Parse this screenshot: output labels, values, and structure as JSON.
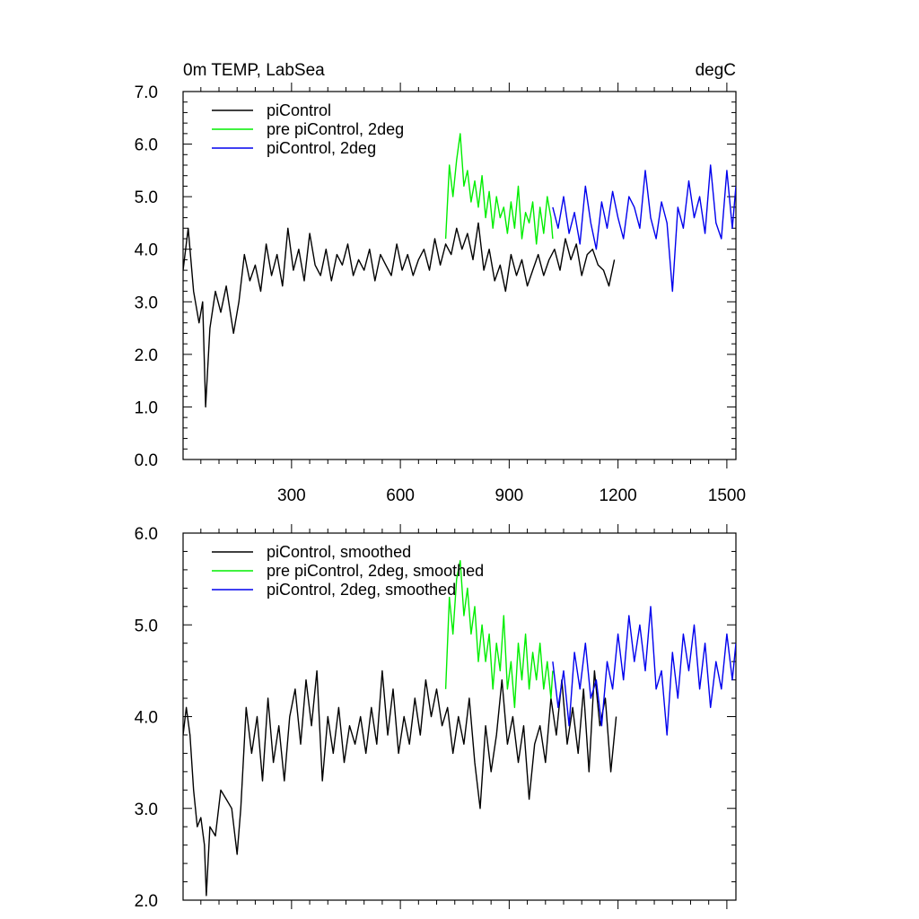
{
  "chart_data": [
    {
      "type": "line",
      "title_left": "0m TEMP, LabSea",
      "title_right": "degC",
      "xlabel": "",
      "ylabel": "",
      "xlim": [
        1,
        1525
      ],
      "ylim": [
        0,
        7
      ],
      "xticks": [
        300,
        600,
        900,
        1200,
        1500
      ],
      "xtick_labels": [
        "300",
        "600",
        "900",
        "1200",
        "1500"
      ],
      "yticks": [
        0,
        1,
        2,
        3,
        4,
        5,
        6,
        7
      ],
      "ytick_labels": [
        "0.0",
        "1.0",
        "2.0",
        "3.0",
        "4.0",
        "5.0",
        "6.0",
        "7.0"
      ],
      "legend_position": "top-left",
      "series": [
        {
          "name": "piControl",
          "color": "#000000",
          "x": [
            1,
            15,
            30,
            45,
            55,
            63,
            75,
            90,
            105,
            120,
            140,
            155,
            170,
            185,
            200,
            215,
            230,
            245,
            260,
            275,
            290,
            305,
            320,
            335,
            350,
            365,
            380,
            395,
            410,
            425,
            440,
            455,
            470,
            485,
            500,
            515,
            530,
            545,
            560,
            575,
            590,
            605,
            620,
            635,
            650,
            665,
            680,
            695,
            710,
            725,
            740,
            755,
            770,
            785,
            800,
            815,
            830,
            845,
            860,
            875,
            890,
            905,
            920,
            935,
            950,
            965,
            980,
            995,
            1010,
            1025,
            1040,
            1055,
            1070,
            1085,
            1100,
            1115,
            1130,
            1145,
            1160,
            1175,
            1190
          ],
          "y": [
            3.6,
            4.4,
            3.2,
            2.6,
            3.0,
            1.0,
            2.5,
            3.2,
            2.8,
            3.3,
            2.4,
            3.0,
            3.9,
            3.4,
            3.7,
            3.2,
            4.1,
            3.5,
            3.9,
            3.3,
            4.4,
            3.6,
            4.0,
            3.4,
            4.3,
            3.7,
            3.5,
            4.0,
            3.4,
            3.9,
            3.7,
            4.1,
            3.5,
            3.8,
            3.6,
            4.0,
            3.4,
            3.9,
            3.7,
            3.5,
            4.1,
            3.6,
            3.9,
            3.5,
            3.8,
            4.0,
            3.6,
            4.2,
            3.7,
            4.1,
            3.9,
            4.4,
            4.0,
            4.3,
            3.8,
            4.5,
            3.6,
            4.0,
            3.4,
            3.7,
            3.2,
            3.9,
            3.5,
            3.8,
            3.3,
            3.6,
            3.9,
            3.5,
            3.8,
            4.0,
            3.6,
            4.2,
            3.8,
            4.1,
            3.5,
            3.9,
            4.0,
            3.7,
            3.6,
            3.3,
            3.8
          ]
        },
        {
          "name": "pre piControl, 2deg",
          "color": "#00ee00",
          "x": [
            725,
            735,
            745,
            755,
            765,
            775,
            785,
            795,
            805,
            815,
            825,
            835,
            845,
            855,
            865,
            875,
            885,
            895,
            905,
            915,
            925,
            935,
            945,
            955,
            965,
            975,
            985,
            995,
            1005,
            1015,
            1020
          ],
          "y": [
            4.2,
            5.6,
            5.0,
            5.7,
            6.2,
            5.2,
            5.5,
            4.9,
            5.3,
            4.8,
            5.4,
            4.6,
            5.1,
            4.4,
            5.0,
            4.6,
            4.8,
            4.3,
            4.9,
            4.4,
            5.2,
            4.2,
            4.7,
            4.5,
            4.9,
            4.1,
            4.8,
            4.3,
            5.0,
            4.6,
            4.2
          ]
        },
        {
          "name": "piControl, 2deg",
          "color": "#0000ee",
          "x": [
            1020,
            1035,
            1050,
            1065,
            1080,
            1095,
            1110,
            1125,
            1140,
            1155,
            1170,
            1185,
            1200,
            1215,
            1230,
            1245,
            1260,
            1275,
            1290,
            1305,
            1320,
            1335,
            1350,
            1365,
            1380,
            1395,
            1410,
            1425,
            1440,
            1455,
            1470,
            1485,
            1500,
            1515,
            1525
          ],
          "y": [
            4.8,
            4.4,
            5.0,
            4.3,
            4.7,
            4.1,
            5.2,
            4.5,
            4.0,
            4.9,
            4.4,
            5.1,
            4.6,
            4.2,
            5.0,
            4.8,
            4.4,
            5.5,
            4.6,
            4.2,
            4.9,
            4.5,
            3.2,
            4.8,
            4.4,
            5.3,
            4.6,
            5.0,
            4.3,
            5.6,
            4.5,
            4.2,
            5.5,
            4.4,
            5.2
          ]
        }
      ]
    },
    {
      "type": "line",
      "title_left": "",
      "title_right": "",
      "xlabel": "",
      "ylabel": "",
      "xlim": [
        1,
        1525
      ],
      "ylim": [
        2,
        6
      ],
      "xticks": [
        300,
        600,
        900,
        1200,
        1500
      ],
      "xtick_labels": [],
      "yticks": [
        2,
        3,
        4,
        5,
        6
      ],
      "ytick_labels": [
        "2.0",
        "3.0",
        "4.0",
        "5.0",
        "6.0"
      ],
      "legend_position": "top-left",
      "series": [
        {
          "name": "piControl, smoothed",
          "color": "#000000",
          "x": [
            1,
            10,
            20,
            30,
            40,
            50,
            60,
            65,
            75,
            90,
            105,
            120,
            135,
            150,
            160,
            175,
            190,
            205,
            220,
            235,
            250,
            265,
            280,
            295,
            310,
            325,
            340,
            355,
            370,
            385,
            400,
            415,
            430,
            445,
            460,
            475,
            490,
            505,
            520,
            535,
            550,
            565,
            580,
            595,
            610,
            625,
            640,
            655,
            670,
            685,
            700,
            715,
            730,
            745,
            760,
            775,
            790,
            805,
            820,
            835,
            850,
            865,
            880,
            895,
            910,
            925,
            940,
            955,
            970,
            985,
            1000,
            1015,
            1030,
            1045,
            1060,
            1075,
            1090,
            1105,
            1120,
            1135,
            1150,
            1165,
            1180,
            1195
          ],
          "y": [
            3.8,
            4.1,
            3.8,
            3.2,
            2.8,
            2.9,
            2.6,
            2.05,
            2.8,
            2.7,
            3.2,
            3.1,
            3.0,
            2.5,
            3.0,
            4.1,
            3.6,
            4.0,
            3.3,
            4.2,
            3.5,
            3.9,
            3.3,
            4.0,
            4.3,
            3.7,
            4.4,
            3.9,
            4.5,
            3.3,
            4.0,
            3.6,
            4.1,
            3.5,
            3.9,
            3.7,
            4.0,
            3.6,
            4.1,
            3.7,
            4.5,
            3.8,
            4.3,
            3.6,
            4.0,
            3.7,
            4.2,
            3.8,
            4.4,
            4.0,
            4.3,
            3.9,
            4.1,
            3.6,
            4.0,
            3.7,
            4.2,
            3.5,
            3.0,
            3.9,
            3.4,
            3.8,
            4.4,
            3.7,
            4.0,
            3.5,
            3.9,
            3.1,
            3.7,
            3.9,
            3.5,
            4.2,
            3.8,
            4.4,
            3.7,
            4.1,
            3.6,
            4.3,
            3.4,
            4.5,
            3.9,
            4.2,
            3.4,
            4.0
          ]
        },
        {
          "name": "pre piControl, 2deg, smoothed",
          "color": "#00ee00",
          "x": [
            725,
            735,
            745,
            755,
            765,
            775,
            785,
            795,
            805,
            815,
            825,
            835,
            845,
            855,
            865,
            875,
            885,
            895,
            905,
            915,
            925,
            935,
            945,
            955,
            965,
            975,
            985,
            995,
            1005,
            1015,
            1020
          ],
          "y": [
            4.3,
            5.3,
            4.9,
            5.5,
            5.7,
            5.1,
            5.4,
            4.9,
            5.2,
            4.6,
            5.0,
            4.6,
            4.9,
            4.3,
            4.8,
            4.5,
            5.1,
            4.3,
            4.6,
            4.1,
            4.8,
            4.4,
            4.9,
            4.3,
            4.7,
            4.4,
            4.8,
            4.3,
            4.6,
            4.2,
            4.5
          ]
        },
        {
          "name": "piControl, 2deg, smoothed",
          "color": "#0000ee",
          "x": [
            1020,
            1035,
            1050,
            1065,
            1080,
            1095,
            1110,
            1125,
            1140,
            1155,
            1170,
            1185,
            1200,
            1215,
            1230,
            1245,
            1260,
            1275,
            1290,
            1305,
            1320,
            1335,
            1350,
            1365,
            1380,
            1395,
            1410,
            1425,
            1440,
            1455,
            1470,
            1485,
            1500,
            1515,
            1525
          ],
          "y": [
            4.6,
            4.1,
            4.5,
            3.9,
            4.7,
            4.3,
            4.8,
            4.2,
            4.4,
            3.9,
            4.6,
            4.3,
            4.9,
            4.4,
            5.1,
            4.6,
            5.0,
            4.5,
            5.2,
            4.3,
            4.5,
            3.8,
            4.7,
            4.2,
            4.9,
            4.5,
            5.0,
            4.3,
            4.8,
            4.1,
            4.6,
            4.3,
            4.9,
            4.4,
            4.8
          ]
        }
      ]
    }
  ]
}
